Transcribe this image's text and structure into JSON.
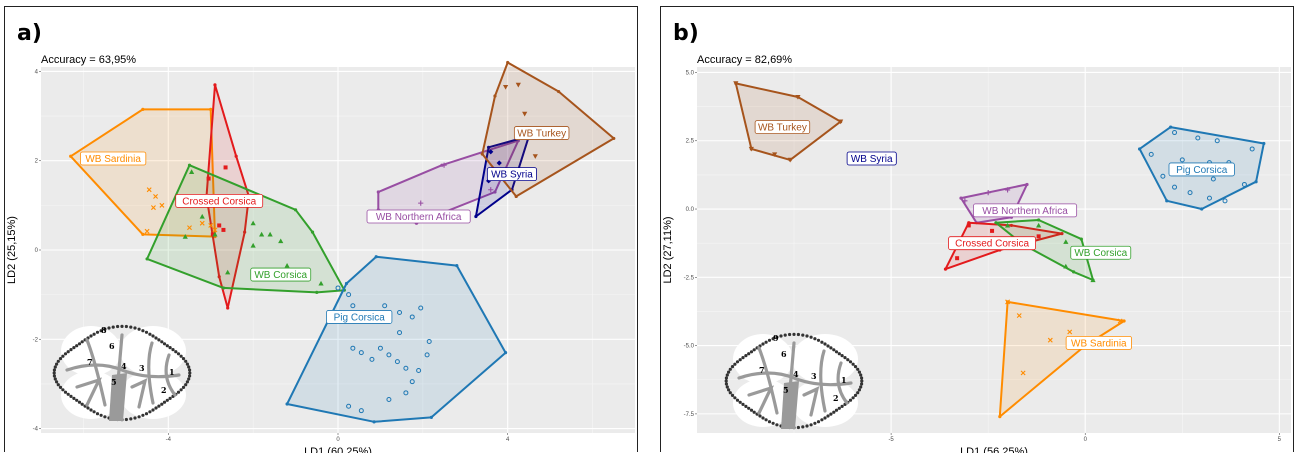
{
  "colors": {
    "WB Sardinia": "#ff8c00",
    "Crossed Corsica": "#e31a1c",
    "WB Corsica": "#33a02c",
    "Pig Corsica": "#1f78b4",
    "WB Northern Africa": "#984ea3",
    "WB Syria": "#00008b",
    "WB Turkey": "#a6541c",
    "panel_bg": "#ebebeb",
    "grid": "#ffffff"
  },
  "icons": [
    "molar-outline-icon"
  ],
  "chart_data": [
    {
      "panel": "a)",
      "type": "scatter",
      "accuracy_text": "Accuracy = 63,95%",
      "xlabel": "LD1 (60,25%)",
      "ylabel": "LD2 (25,15%)",
      "xlim": [
        -7.0,
        7.0
      ],
      "ylim": [
        -4.1,
        4.1
      ],
      "xticks": [
        -4,
        0,
        4
      ],
      "xtick_labels": [
        "-4",
        "0",
        "4"
      ],
      "yticks": [
        -4,
        -2,
        0,
        2,
        4
      ],
      "ytick_labels": [
        "-4",
        "-2",
        "0",
        "2",
        "4"
      ],
      "grid": true,
      "groups": [
        {
          "name": "WB Sardinia",
          "marker": "x",
          "label_at": [
            -5.3,
            2.05
          ],
          "hull": [
            [
              -6.3,
              2.1
            ],
            [
              -4.6,
              3.15
            ],
            [
              -3.0,
              3.15
            ],
            [
              -2.9,
              0.3
            ],
            [
              -4.6,
              0.35
            ]
          ],
          "points": [
            [
              -4.45,
              1.35
            ],
            [
              -4.3,
              1.2
            ],
            [
              -4.15,
              1.0
            ],
            [
              -4.35,
              0.95
            ],
            [
              -4.5,
              0.42
            ],
            [
              -3.5,
              0.5
            ],
            [
              -3.2,
              0.6
            ],
            [
              -3.0,
              0.55
            ],
            [
              -2.9,
              0.45
            ]
          ]
        },
        {
          "name": "Crossed Corsica",
          "marker": "square",
          "label_at": [
            -2.8,
            1.1
          ],
          "hull": [
            [
              -2.9,
              3.7
            ],
            [
              -2.4,
              2.1
            ],
            [
              -2.1,
              1.2
            ],
            [
              -2.2,
              0.4
            ],
            [
              -2.6,
              -1.3
            ],
            [
              -2.8,
              -0.6
            ],
            [
              -3.1,
              1.2
            ]
          ],
          "points": [
            [
              -2.8,
              0.55
            ],
            [
              -2.7,
              0.45
            ],
            [
              -2.95,
              0.35
            ],
            [
              -3.05,
              1.6
            ],
            [
              -2.65,
              1.85
            ]
          ]
        },
        {
          "name": "WB Corsica",
          "marker": "triangle",
          "label_at": [
            -1.35,
            -0.55
          ],
          "hull": [
            [
              -3.5,
              1.9
            ],
            [
              -1.0,
              0.9
            ],
            [
              -0.6,
              0.4
            ],
            [
              0.15,
              -0.9
            ],
            [
              -0.5,
              -0.95
            ],
            [
              -2.7,
              -0.85
            ],
            [
              -4.5,
              -0.2
            ]
          ],
          "points": [
            [
              -3.45,
              1.75
            ],
            [
              -3.2,
              0.75
            ],
            [
              -2.9,
              0.35
            ],
            [
              -2.0,
              0.6
            ],
            [
              -1.8,
              0.35
            ],
            [
              -1.6,
              0.35
            ],
            [
              -1.35,
              0.2
            ],
            [
              -2.0,
              0.1
            ],
            [
              -1.2,
              -0.35
            ],
            [
              -1.0,
              -0.5
            ],
            [
              -0.4,
              -0.75
            ],
            [
              -2.6,
              -0.5
            ],
            [
              -3.6,
              0.3
            ]
          ]
        },
        {
          "name": "Pig Corsica",
          "marker": "circle",
          "label_at": [
            0.5,
            -1.5
          ],
          "hull": [
            [
              0.9,
              -0.15
            ],
            [
              2.8,
              -0.35
            ],
            [
              3.95,
              -2.3
            ],
            [
              2.2,
              -3.75
            ],
            [
              0.85,
              -3.85
            ],
            [
              -1.2,
              -3.45
            ],
            [
              0.2,
              -0.75
            ]
          ],
          "points": [
            [
              0.0,
              -0.85
            ],
            [
              0.25,
              -1.0
            ],
            [
              0.35,
              -1.25
            ],
            [
              0.75,
              -1.45
            ],
            [
              1.1,
              -1.25
            ],
            [
              1.45,
              -1.4
            ],
            [
              1.75,
              -1.5
            ],
            [
              1.95,
              -1.3
            ],
            [
              0.35,
              -2.2
            ],
            [
              0.55,
              -2.3
            ],
            [
              0.8,
              -2.45
            ],
            [
              1.0,
              -2.2
            ],
            [
              1.2,
              -2.35
            ],
            [
              1.4,
              -2.5
            ],
            [
              1.6,
              -2.65
            ],
            [
              1.9,
              -2.7
            ],
            [
              2.1,
              -2.35
            ],
            [
              1.75,
              -2.95
            ],
            [
              1.6,
              -3.2
            ],
            [
              1.2,
              -3.35
            ],
            [
              0.55,
              -3.6
            ],
            [
              0.25,
              -3.5
            ],
            [
              1.45,
              -1.85
            ],
            [
              2.15,
              -2.05
            ]
          ]
        },
        {
          "name": "WB Northern Africa",
          "marker": "plus",
          "label_at": [
            1.9,
            0.75
          ],
          "hull": [
            [
              2.45,
              1.9
            ],
            [
              4.25,
              2.45
            ],
            [
              3.7,
              1.3
            ],
            [
              1.85,
              0.6
            ],
            [
              0.95,
              0.9
            ],
            [
              0.95,
              1.3
            ]
          ],
          "points": [
            [
              2.5,
              1.9
            ],
            [
              1.95,
              1.05
            ],
            [
              3.6,
              1.35
            ],
            [
              4.0,
              1.7
            ]
          ]
        },
        {
          "name": "WB Syria",
          "marker": "diamond",
          "label_at": [
            4.1,
            1.7
          ],
          "hull": [
            [
              3.55,
              2.3
            ],
            [
              4.5,
              2.55
            ],
            [
              4.1,
              1.35
            ],
            [
              3.25,
              0.75
            ]
          ],
          "points": [
            [
              3.6,
              2.2
            ],
            [
              3.8,
              1.95
            ],
            [
              3.55,
              1.55
            ],
            [
              3.9,
              1.75
            ]
          ]
        },
        {
          "name": "WB Turkey",
          "marker": "down-triangle",
          "label_at": [
            4.8,
            2.62
          ],
          "hull": [
            [
              4.0,
              4.2
            ],
            [
              5.2,
              3.55
            ],
            [
              6.5,
              2.5
            ],
            [
              4.2,
              1.2
            ],
            [
              3.4,
              2.15
            ],
            [
              3.7,
              3.45
            ]
          ],
          "points": [
            [
              3.95,
              3.65
            ],
            [
              4.25,
              3.7
            ],
            [
              4.4,
              3.05
            ],
            [
              4.75,
              2.6
            ],
            [
              5.1,
              2.65
            ],
            [
              4.65,
              2.1
            ]
          ]
        }
      ],
      "molar_numbers": [
        "1",
        "2",
        "3",
        "4",
        "5",
        "6",
        "7",
        "8"
      ]
    },
    {
      "panel": "b)",
      "type": "scatter",
      "accuracy_text": "Accuracy = 82,69%",
      "xlabel": "LD1 (56,25%)",
      "ylabel": "LD2 (27,11%)",
      "xlim": [
        -10.0,
        5.3
      ],
      "ylim": [
        -8.2,
        5.2
      ],
      "xticks": [
        -5,
        0,
        5
      ],
      "xtick_labels": [
        "-5",
        "0",
        "5"
      ],
      "yticks": [
        -7.5,
        -5.0,
        -2.5,
        0.0,
        2.5,
        5.0
      ],
      "ytick_labels": [
        "-7.5",
        "-5.0",
        "-2.5",
        "0.0",
        "2.5",
        "5.0"
      ],
      "grid": true,
      "groups": [
        {
          "name": "WB Turkey",
          "marker": "down-triangle",
          "label_at": [
            -7.8,
            3.0
          ],
          "hull": [
            [
              -9.0,
              4.6
            ],
            [
              -7.4,
              4.1
            ],
            [
              -6.3,
              3.2
            ],
            [
              -7.6,
              1.8
            ],
            [
              -8.6,
              2.2
            ]
          ],
          "points": [
            [
              -9.0,
              4.6
            ],
            [
              -7.4,
              4.1
            ],
            [
              -6.3,
              3.2
            ],
            [
              -7.6,
              1.8
            ],
            [
              -8.6,
              2.2
            ],
            [
              -8.0,
              2.0
            ]
          ]
        },
        {
          "name": "WB Syria",
          "marker": "diamond",
          "label_at": [
            -5.5,
            1.85
          ],
          "hull": [],
          "points": []
        },
        {
          "name": "Pig Corsica",
          "marker": "circle",
          "label_at": [
            3.0,
            1.45
          ],
          "hull": [
            [
              2.2,
              3.0
            ],
            [
              4.6,
              2.4
            ],
            [
              4.4,
              1.0
            ],
            [
              3.0,
              0.0
            ],
            [
              2.1,
              0.3
            ],
            [
              1.4,
              2.2
            ]
          ],
          "points": [
            [
              2.3,
              2.8
            ],
            [
              2.9,
              2.6
            ],
            [
              3.4,
              2.5
            ],
            [
              4.3,
              2.2
            ],
            [
              1.7,
              2.0
            ],
            [
              2.5,
              1.8
            ],
            [
              3.2,
              1.7
            ],
            [
              3.7,
              1.7
            ],
            [
              2.0,
              1.2
            ],
            [
              2.3,
              0.8
            ],
            [
              2.7,
              0.6
            ],
            [
              3.2,
              0.4
            ],
            [
              3.6,
              0.3
            ],
            [
              4.1,
              0.9
            ],
            [
              2.6,
              1.4
            ],
            [
              3.3,
              1.1
            ]
          ]
        },
        {
          "name": "WB Northern Africa",
          "marker": "plus",
          "label_at": [
            -1.55,
            -0.05
          ],
          "hull": [
            [
              -3.2,
              0.4
            ],
            [
              -1.5,
              0.9
            ],
            [
              -1.9,
              -0.3
            ],
            [
              -2.8,
              -0.5
            ]
          ],
          "points": [
            [
              -3.1,
              0.3
            ],
            [
              -2.5,
              0.6
            ],
            [
              -2.0,
              0.7
            ],
            [
              -2.4,
              -0.1
            ]
          ]
        },
        {
          "name": "Crossed Corsica",
          "marker": "square",
          "label_at": [
            -2.4,
            -1.25
          ],
          "hull": [
            [
              -3.6,
              -2.2
            ],
            [
              -3.0,
              -0.5
            ],
            [
              -1.9,
              -0.6
            ],
            [
              -0.6,
              -0.9
            ],
            [
              -2.2,
              -1.5
            ]
          ],
          "points": [
            [
              -3.0,
              -0.6
            ],
            [
              -2.4,
              -0.8
            ],
            [
              -1.2,
              -1.0
            ],
            [
              -3.3,
              -1.8
            ]
          ]
        },
        {
          "name": "WB Corsica",
          "marker": "triangle",
          "label_at": [
            0.4,
            -1.6
          ],
          "hull": [
            [
              -2.3,
              -0.5
            ],
            [
              -1.2,
              -0.4
            ],
            [
              -0.1,
              -1.1
            ],
            [
              0.2,
              -2.6
            ],
            [
              -0.3,
              -2.3
            ],
            [
              -1.6,
              -1.3
            ]
          ],
          "points": [
            [
              -2.0,
              -0.6
            ],
            [
              -1.2,
              -0.6
            ],
            [
              -0.5,
              -1.2
            ],
            [
              -0.5,
              -2.1
            ],
            [
              0.2,
              -2.6
            ]
          ]
        },
        {
          "name": "WB Sardinia",
          "marker": "x",
          "label_at": [
            0.35,
            -4.9
          ],
          "hull": [
            [
              -2.0,
              -3.4
            ],
            [
              1.0,
              -4.1
            ],
            [
              0.0,
              -5.0
            ],
            [
              -2.2,
              -7.6
            ]
          ],
          "points": [
            [
              -2.0,
              -3.4
            ],
            [
              -1.7,
              -3.9
            ],
            [
              -0.9,
              -4.8
            ],
            [
              -1.6,
              -6.0
            ],
            [
              -0.4,
              -4.5
            ],
            [
              0.9,
              -4.1
            ]
          ]
        }
      ],
      "molar_numbers": [
        "1",
        "2",
        "3",
        "4",
        "5",
        "6",
        "7",
        "9"
      ]
    }
  ]
}
